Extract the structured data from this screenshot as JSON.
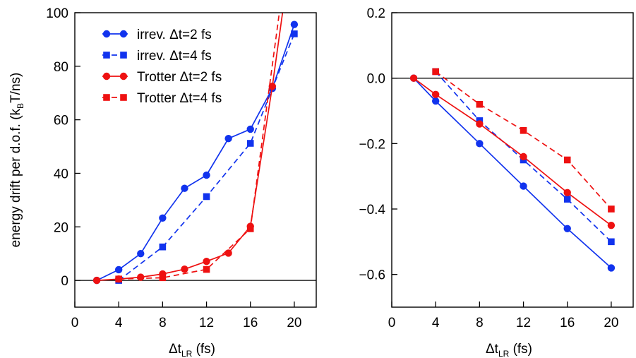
{
  "colors": {
    "blue": "#1133ee",
    "red": "#ee1111",
    "axis": "#000000"
  },
  "chart_data": [
    {
      "type": "line",
      "xlabel": {
        "main": "Δt",
        "sub": "LR",
        "unit": " (fs)"
      },
      "ylabel": {
        "main": "energy drift per d.o.f. (k",
        "sub": "B",
        "unit": "T/ns)"
      },
      "xlim": [
        0,
        22
      ],
      "ylim": [
        -10,
        100
      ],
      "xticks": [
        0,
        4,
        8,
        12,
        16,
        20
      ],
      "yticks": [
        0,
        20,
        40,
        60,
        80,
        100
      ],
      "xtick_labels": [
        "0",
        "4",
        "8",
        "12",
        "16",
        "20"
      ],
      "ytick_labels": [
        "0",
        "20",
        "40",
        "60",
        "80",
        "100"
      ],
      "zero_line": true,
      "legend_position": "upper-left",
      "series": [
        {
          "name": "irrev. Δt=2 fs",
          "color": "blue",
          "marker": "circle",
          "dash": false,
          "x": [
            2,
            4,
            6,
            8,
            10,
            12,
            14,
            16,
            18,
            20
          ],
          "y": [
            0,
            4,
            10,
            23.3,
            34.4,
            39.3,
            53,
            56.5,
            71.7,
            95.6
          ]
        },
        {
          "name": "irrev. Δt=4 fs",
          "color": "blue",
          "marker": "square",
          "dash": true,
          "x": [
            4,
            8,
            12,
            16,
            20
          ],
          "y": [
            0,
            12.5,
            31.3,
            51.2,
            92.1
          ]
        },
        {
          "name": "Trotter Δt=2 fs",
          "color": "red",
          "marker": "circle",
          "dash": false,
          "x": [
            2,
            4,
            6,
            8,
            10,
            12,
            14,
            16,
            18,
            19.2
          ],
          "y": [
            0,
            0.5,
            1.2,
            2.4,
            4.2,
            7.1,
            10.2,
            20.2,
            72.5,
            108
          ],
          "marker_points": 9
        },
        {
          "name": "Trotter Δt=4 fs",
          "color": "red",
          "marker": "square",
          "dash": true,
          "x": [
            4,
            8,
            12,
            16,
            18.9
          ],
          "y": [
            0.5,
            1,
            4.1,
            19.3,
            108
          ],
          "marker_points": 4
        }
      ]
    },
    {
      "type": "line",
      "xlabel": {
        "main": "Δt",
        "sub": "LR",
        "unit": " (fs)"
      },
      "xlim": [
        0,
        22
      ],
      "ylim": [
        -0.7,
        0.2
      ],
      "xticks": [
        0,
        4,
        8,
        12,
        16,
        20
      ],
      "yticks": [
        0.2,
        0.0,
        -0.2,
        -0.4,
        -0.6
      ],
      "xtick_labels": [
        "0",
        "4",
        "8",
        "12",
        "16",
        "20"
      ],
      "ytick_labels": [
        "0.2",
        "0.0",
        "−0.2",
        "−0.4",
        "−0.6"
      ],
      "zero_line": true,
      "series": [
        {
          "color": "blue",
          "marker": "circle",
          "dash": false,
          "x": [
            2,
            4,
            8,
            12,
            16,
            20
          ],
          "y": [
            0,
            -0.07,
            -0.2,
            -0.33,
            -0.46,
            -0.58
          ]
        },
        {
          "color": "blue",
          "marker": "square",
          "dash": true,
          "x": [
            4,
            8,
            12,
            16,
            20
          ],
          "y": [
            0.02,
            -0.13,
            -0.25,
            -0.37,
            -0.5
          ]
        },
        {
          "color": "red",
          "marker": "circle",
          "dash": false,
          "x": [
            2,
            4,
            8,
            12,
            16,
            20
          ],
          "y": [
            0,
            -0.05,
            -0.14,
            -0.24,
            -0.35,
            -0.45
          ]
        },
        {
          "color": "red",
          "marker": "square",
          "dash": true,
          "x": [
            4,
            8,
            12,
            16,
            20
          ],
          "y": [
            0.02,
            -0.08,
            -0.16,
            -0.25,
            -0.4
          ]
        }
      ]
    }
  ]
}
